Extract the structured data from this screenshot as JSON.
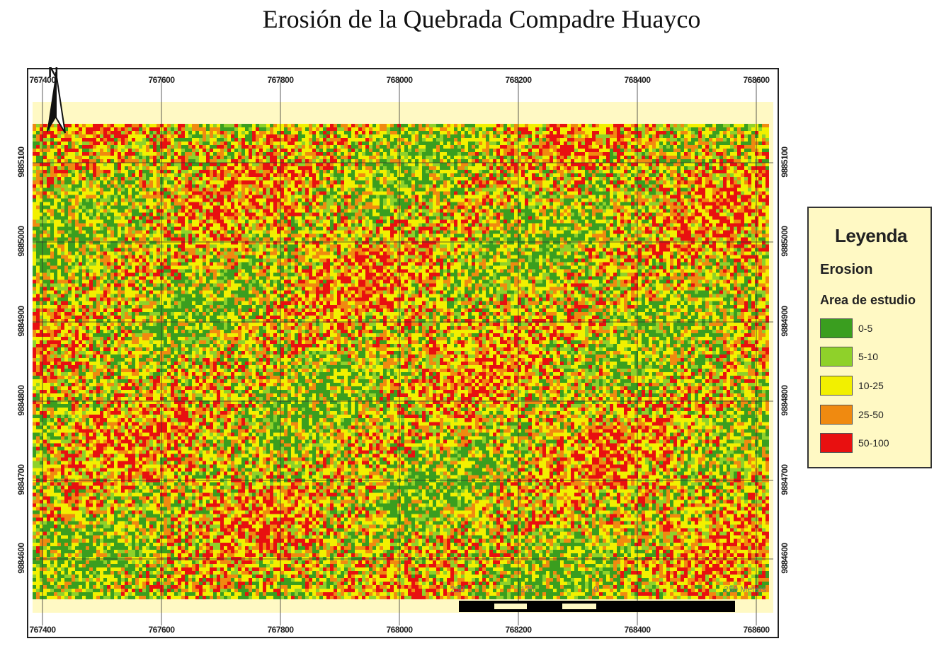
{
  "map": {
    "title": "Erosión de la Quebrada Compadre Huayco",
    "north_label": "N",
    "x_ticks": [
      "767400",
      "767600",
      "767800",
      "768000",
      "768200",
      "768400",
      "768600"
    ],
    "y_ticks": [
      "9885100",
      "9885000",
      "9884900",
      "9884800",
      "9884700",
      "9884600"
    ],
    "scale_labels": [
      "250",
      "125",
      "0",
      "250 Meters"
    ],
    "classes": [
      {
        "label": "0-5",
        "color": "#3a9e1f"
      },
      {
        "label": "5-10",
        "color": "#8fd12a"
      },
      {
        "label": "10-25",
        "color": "#f2f000"
      },
      {
        "label": "25-50",
        "color": "#f08a10"
      },
      {
        "label": "50-100",
        "color": "#e81010"
      }
    ]
  },
  "legend": {
    "title": "Leyenda",
    "layer": "Erosion",
    "sublayer": "Area de estudio"
  }
}
